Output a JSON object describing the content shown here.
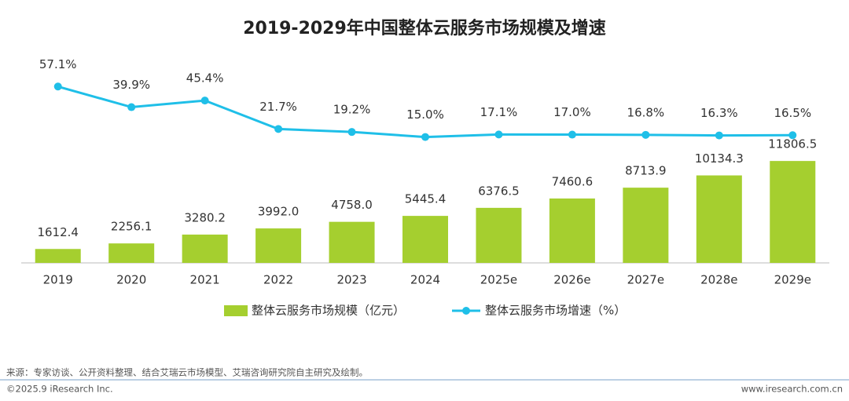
{
  "chart_data": {
    "type": "bar",
    "title": "2019-2029年中国整体云服务市场规模及增速",
    "categories": [
      "2019",
      "2020",
      "2021",
      "2022",
      "2023",
      "2024",
      "2025e",
      "2026e",
      "2027e",
      "2028e",
      "2029e"
    ],
    "series": [
      {
        "name": "整体云服务市场规模（亿元）",
        "type": "bar",
        "color": "#a5cf2f",
        "values": [
          1612.4,
          2256.1,
          3280.2,
          3992.0,
          4758.0,
          5445.4,
          6376.5,
          7460.6,
          8713.9,
          10134.3,
          11806.5
        ],
        "value_labels": [
          "1612.4",
          "2256.1",
          "3280.2",
          "3992.0",
          "4758.0",
          "5445.4",
          "6376.5",
          "7460.6",
          "8713.9",
          "10134.3",
          "11806.5"
        ]
      },
      {
        "name": "整体云服务市场增速（%）",
        "type": "line",
        "axis": "y2",
        "color": "#1fbfe8",
        "values": [
          57.1,
          39.9,
          45.4,
          21.7,
          19.2,
          15.0,
          17.1,
          17.0,
          16.8,
          16.3,
          16.5
        ],
        "value_labels": [
          "57.1%",
          "39.9%",
          "45.4%",
          "21.7%",
          "19.2%",
          "15.0%",
          "17.1%",
          "17.0%",
          "16.8%",
          "16.3%",
          "16.5%"
        ]
      }
    ],
    "ylim": [
      0,
      25000
    ],
    "y2lim": [
      -90,
      90
    ],
    "legend": "bottom"
  },
  "footer": {
    "source": "来源：专家访谈、公开资料整理、结合艾瑞云市场模型、艾瑞咨询研究院自主研究及绘制。",
    "copyright": "©2025.9 iResearch Inc.",
    "website": "www.iresearch.com.cn"
  }
}
